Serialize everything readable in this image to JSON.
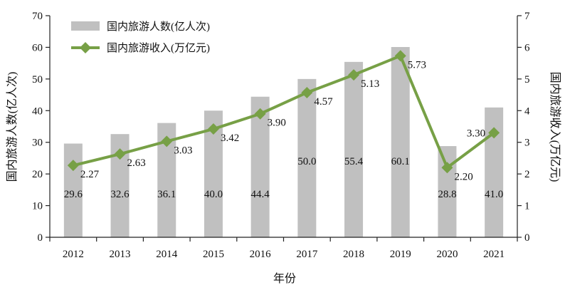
{
  "chart_data": {
    "type": "bar+line",
    "categories": [
      "2012",
      "2013",
      "2014",
      "2015",
      "2016",
      "2017",
      "2018",
      "2019",
      "2020",
      "2021"
    ],
    "series": [
      {
        "name": "国内旅游人数(亿人次)",
        "type": "bar",
        "axis": "left",
        "values": [
          29.6,
          32.6,
          36.1,
          40.0,
          44.4,
          50.0,
          55.4,
          60.1,
          28.8,
          41.0
        ],
        "labels": [
          "29.6",
          "32.6",
          "36.1",
          "40.0",
          "44.4",
          "50.0",
          "55.4",
          "60.1",
          "28.8",
          "41.0"
        ],
        "color": "#c0c0c0"
      },
      {
        "name": "国内旅游收入(万亿元)",
        "type": "line",
        "axis": "right",
        "values": [
          2.27,
          2.63,
          3.03,
          3.42,
          3.9,
          4.57,
          5.13,
          5.73,
          2.2,
          3.3
        ],
        "labels": [
          "2.27",
          "2.63",
          "3.03",
          "3.42",
          "3.90",
          "4.57",
          "5.13",
          "5.73",
          "2.20",
          "3.30"
        ],
        "color": "#77a046",
        "marker": "diamond"
      }
    ],
    "xlabel": "年份",
    "ylabel_left": "国内旅游人数(亿人次)",
    "ylabel_right": "国内旅游收入(万亿元)",
    "ylim_left": [
      0,
      70
    ],
    "ylim_right": [
      0,
      7
    ],
    "yticks_left": [
      "0",
      "10",
      "20",
      "30",
      "40",
      "50",
      "60",
      "70"
    ],
    "yticks_right": [
      "0",
      "1",
      "2",
      "3",
      "4",
      "5",
      "6",
      "7"
    ],
    "legend": {
      "placement": "top-left",
      "items": [
        "国内旅游人数(亿人次)",
        "国内旅游收入(万亿元)"
      ]
    },
    "grid": false
  }
}
